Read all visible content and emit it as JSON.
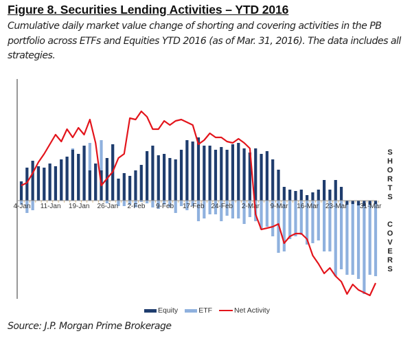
{
  "title": "Figure 8. Securities Lending Activities – YTD 2016",
  "subtitle": "Cumulative daily market value change of shorting and covering activities in the PB portfolio across ETFs and Equities YTD 2016 (as of Mar. 31, 2016). The data includes all strategies.",
  "source": "Source: J.P. Morgan Prime Brokerage",
  "side_labels": {
    "top": "SHORTS",
    "bottom": "COVERS"
  },
  "colors": {
    "equity": "#1f3d6e",
    "etf": "#8fb1de",
    "net": "#e3141b"
  },
  "chart_data": {
    "type": "bar",
    "title": "Figure 8. Securities Lending Activities – YTD 2016",
    "xlabel": "",
    "ylabel": "",
    "ylim": [
      -150,
      185
    ],
    "grid": false,
    "legend_position": "bottom",
    "y_units": "relative index (no y-axis labels shown)",
    "x_tick_labels": [
      "4-Jan",
      "11-Jan",
      "19-Jan",
      "26-Jan",
      "2-Feb",
      "9-Feb",
      "17-Feb",
      "24-Feb",
      "2-Mar",
      "9-Mar",
      "16-Mar",
      "23-Mar",
      "31-Mar"
    ],
    "x_tick_indices": [
      0,
      5,
      10,
      15,
      20,
      25,
      30,
      35,
      40,
      45,
      50,
      55,
      61
    ],
    "series": [
      {
        "name": "Equity",
        "type": "bar",
        "values": [
          28,
          48,
          58,
          50,
          48,
          54,
          50,
          60,
          64,
          74,
          68,
          80,
          44,
          54,
          44,
          62,
          82,
          32,
          40,
          36,
          44,
          52,
          72,
          80,
          66,
          68,
          62,
          60,
          74,
          88,
          86,
          92,
          80,
          80,
          74,
          78,
          74,
          82,
          84,
          76,
          70,
          76,
          68,
          72,
          60,
          45,
          20,
          16,
          14,
          16,
          8,
          12,
          16,
          30,
          16,
          30,
          20,
          -6,
          -5,
          -7,
          -8,
          -6,
          -5
        ],
        "etf_stack_note": "ETF values are drawn from zero; positive part overlaps Equity bar"
      },
      {
        "name": "ETF",
        "type": "bar",
        "values": [
          -6,
          -18,
          -14,
          0,
          6,
          24,
          32,
          50,
          32,
          76,
          48,
          62,
          84,
          48,
          88,
          -4,
          60,
          -8,
          -8,
          -6,
          -10,
          -2,
          -4,
          -10,
          -12,
          -6,
          -10,
          -18,
          -8,
          -14,
          -8,
          -30,
          -26,
          -20,
          -20,
          -30,
          -22,
          -26,
          -26,
          -34,
          -24,
          -30,
          -42,
          -38,
          -52,
          -76,
          -74,
          -56,
          -52,
          -50,
          -64,
          -62,
          -58,
          -74,
          -74,
          -110,
          -100,
          -108,
          -108,
          -114,
          -136,
          -108,
          -110
        ],
        "positive_note": "light blue portion visible above equity on several January bars"
      },
      {
        "name": "Net Activity",
        "type": "line",
        "values": [
          22,
          26,
          40,
          56,
          68,
          82,
          96,
          86,
          104,
          92,
          106,
          96,
          118,
          84,
          22,
          32,
          42,
          62,
          68,
          120,
          118,
          130,
          122,
          104,
          104,
          116,
          110,
          116,
          118,
          114,
          110,
          82,
          88,
          98,
          92,
          92,
          86,
          84,
          90,
          84,
          76,
          -20,
          -42,
          -40,
          -38,
          -34,
          -62,
          -52,
          -48,
          -48,
          -56,
          -80,
          -92,
          -106,
          -98,
          -110,
          -118,
          -136,
          -122,
          -130,
          -134,
          -138,
          -120
        ]
      }
    ]
  },
  "legend": [
    {
      "label": "Equity",
      "kind": "bar"
    },
    {
      "label": "ETF",
      "kind": "bar"
    },
    {
      "label": "Net Activity",
      "kind": "line"
    }
  ]
}
